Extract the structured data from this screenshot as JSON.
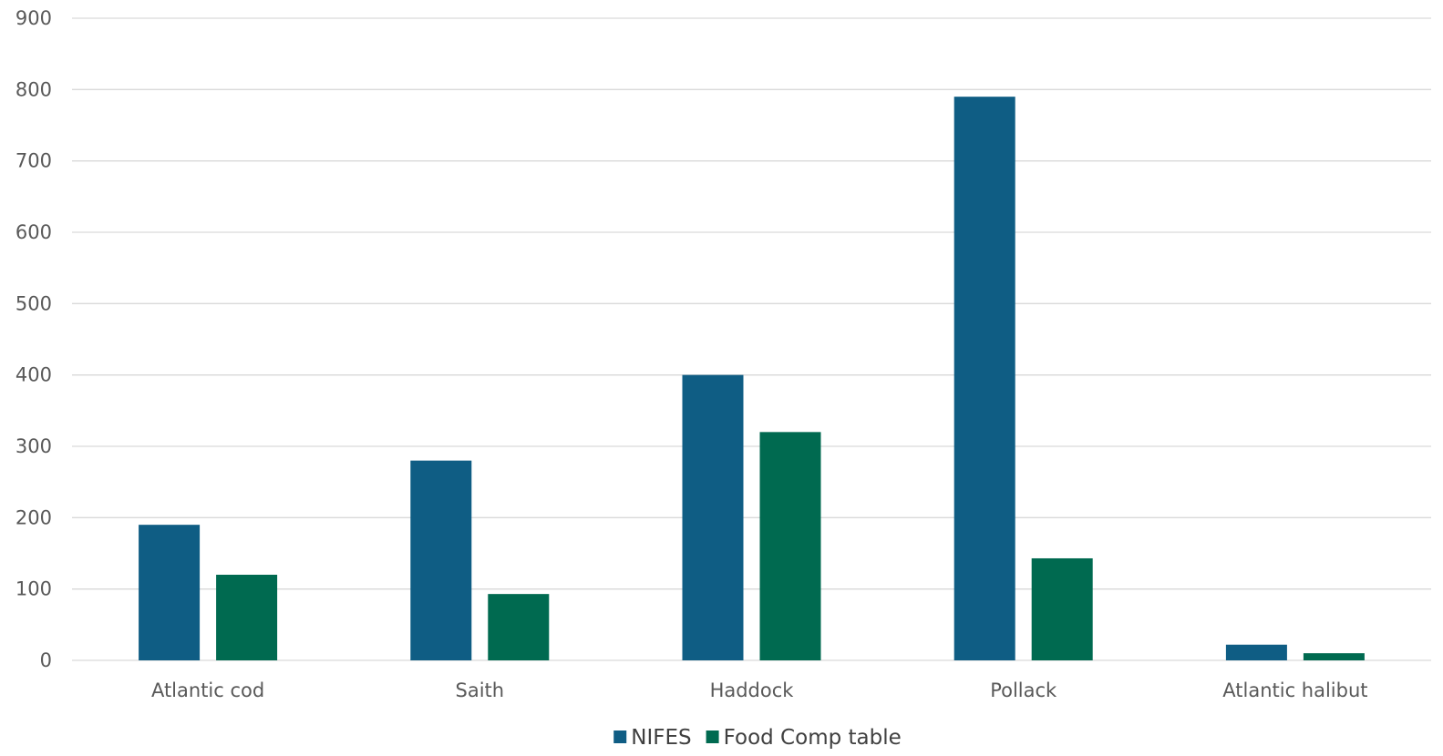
{
  "chart_data": {
    "type": "bar",
    "title": "",
    "xlabel": "",
    "ylabel": "",
    "ylim": [
      0,
      900
    ],
    "yticks": [
      0,
      100,
      200,
      300,
      400,
      500,
      600,
      700,
      800,
      900
    ],
    "grid": true,
    "legend_position": "bottom",
    "categories": [
      "Atlantic cod",
      "Saith",
      "Haddock",
      "Pollack",
      "Atlantic halibut"
    ],
    "series": [
      {
        "name": "NIFES",
        "color": "#0f5d84",
        "values": [
          190,
          280,
          400,
          790,
          22
        ]
      },
      {
        "name": "Food Comp table",
        "color": "#006a50",
        "values": [
          120,
          93,
          320,
          143,
          10
        ]
      }
    ]
  }
}
